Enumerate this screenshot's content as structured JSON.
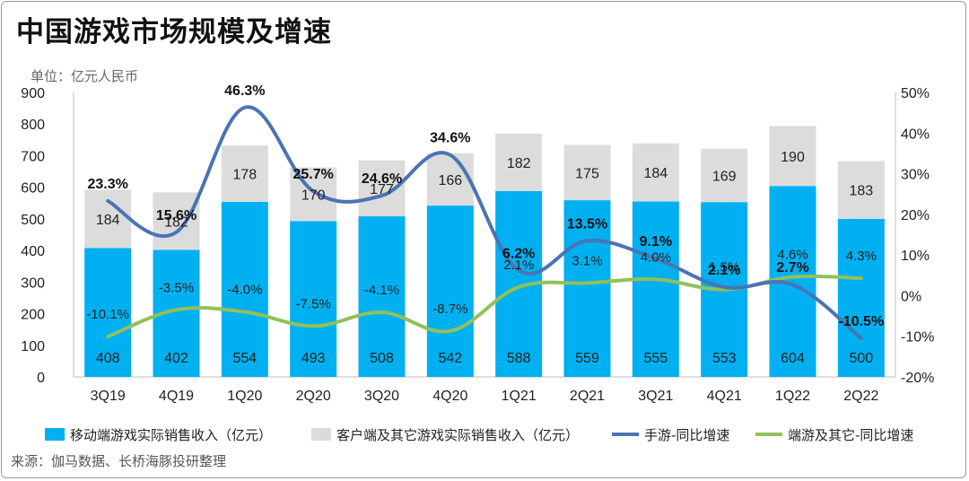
{
  "title": "中国游戏市场规模及增速",
  "unit_label": "单位：亿元人民币",
  "source": "来源：伽马数据、长桥海豚投研整理",
  "colors": {
    "mobile": "#00b0f0",
    "pc": "#dcdcdc",
    "mobile_line": "#4a74b4",
    "pc_line": "#92c05a"
  },
  "chart_data": {
    "type": "bar",
    "stacked": true,
    "categories": [
      "3Q19",
      "4Q19",
      "1Q20",
      "2Q20",
      "3Q20",
      "4Q20",
      "1Q21",
      "2Q21",
      "3Q21",
      "4Q21",
      "1Q22",
      "2Q22"
    ],
    "y_left": {
      "min": 0,
      "max": 900,
      "step": 100,
      "ticks": [
        "0",
        "100",
        "200",
        "300",
        "400",
        "500",
        "600",
        "700",
        "800",
        "900"
      ]
    },
    "y_right": {
      "min": -20,
      "max": 50,
      "step": 10,
      "ticks": [
        "-20%",
        "-10%",
        "0%",
        "10%",
        "20%",
        "30%",
        "40%",
        "50%"
      ]
    },
    "series": [
      {
        "name": "移动端游戏实际销售收入（亿元）",
        "type": "bar",
        "values": [
          408,
          402,
          554,
          493,
          508,
          542,
          588,
          559,
          555,
          553,
          604,
          500
        ],
        "labels": [
          "408",
          "402",
          "554",
          "493",
          "508",
          "542",
          "588",
          "559",
          "555",
          "553",
          "604",
          "500"
        ]
      },
      {
        "name": "客户端及其它游戏实际销售收入（亿元）",
        "type": "bar",
        "values": [
          184,
          182,
          178,
          170,
          177,
          166,
          182,
          175,
          184,
          169,
          190,
          183
        ],
        "labels": [
          "184",
          "182",
          "178",
          "170",
          "177",
          "166",
          "182",
          "175",
          "184",
          "169",
          "190",
          "183"
        ]
      },
      {
        "name": "手游-同比增速",
        "type": "line",
        "axis": "right",
        "values": [
          23.3,
          15.6,
          46.3,
          25.7,
          24.6,
          34.6,
          6.2,
          13.5,
          9.1,
          2.1,
          2.7,
          -10.5
        ],
        "labels": [
          "23.3%",
          "15.6%",
          "46.3%",
          "25.7%",
          "24.6%",
          "34.6%",
          "6.2%",
          "13.5%",
          "9.1%",
          "2.1%",
          "2.7%",
          "-10.5%"
        ]
      },
      {
        "name": "端游及其它-同比增速",
        "type": "line",
        "axis": "right",
        "values": [
          -10.1,
          -3.5,
          -4.0,
          -7.5,
          -4.1,
          -8.7,
          2.1,
          3.1,
          4.0,
          1.5,
          4.6,
          4.3
        ],
        "labels": [
          "-10.1%",
          "-3.5%",
          "-4.0%",
          "-7.5%",
          "-4.1%",
          "-8.7%",
          "2.1%",
          "3.1%",
          "4.0%",
          "1.5%",
          "4.6%",
          "4.3%"
        ]
      }
    ],
    "grid": false,
    "legend": "bottom"
  }
}
